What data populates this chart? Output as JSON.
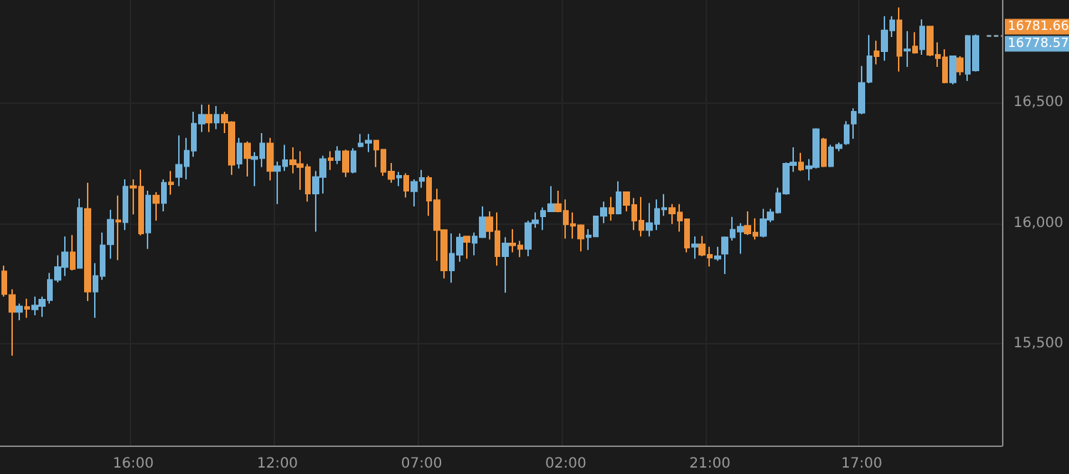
{
  "chart_data": {
    "type": "candlestick",
    "categories": [
      null,
      null,
      null,
      null,
      null,
      null,
      null,
      null,
      null,
      null,
      null,
      null,
      null,
      null,
      null,
      null,
      null,
      "16:00",
      null,
      null,
      null,
      null,
      null,
      null,
      null,
      null,
      null,
      null,
      null,
      null,
      null,
      null,
      null,
      null,
      null,
      null,
      "12:00",
      null,
      null,
      null,
      null,
      null,
      null,
      null,
      null,
      null,
      null,
      null,
      null,
      null,
      null,
      null,
      null,
      null,
      null,
      "07:00",
      null,
      null,
      null,
      null,
      null,
      null,
      null,
      null,
      null,
      null,
      null,
      null,
      null,
      null,
      null,
      null,
      null,
      null,
      "02:00",
      null,
      null,
      null,
      null,
      null,
      null,
      null,
      null,
      null,
      null,
      null,
      null,
      null,
      null,
      null,
      null,
      null,
      null,
      "21:00",
      null,
      null,
      null,
      null,
      null,
      null,
      null,
      null,
      null,
      null,
      null,
      null,
      null,
      null,
      null,
      null,
      null,
      null,
      null,
      "17:00",
      null,
      null,
      null,
      null,
      null,
      null,
      null,
      null,
      null,
      null,
      null,
      null,
      null,
      null,
      null
    ],
    "ohlc": [
      [
        15801,
        15825,
        15697,
        15707
      ],
      [
        15703,
        15727,
        15452,
        15633
      ],
      [
        15633,
        15668,
        15599,
        15656
      ],
      [
        15654,
        15688,
        15609,
        15646
      ],
      [
        15644,
        15697,
        15619,
        15660
      ],
      [
        15658,
        15697,
        15613,
        15684
      ],
      [
        15682,
        15795,
        15668,
        15766
      ],
      [
        15766,
        15868,
        15756,
        15819
      ],
      [
        15819,
        15946,
        15782,
        15880
      ],
      [
        15880,
        15952,
        15805,
        15811
      ],
      [
        15815,
        16103,
        15815,
        16064
      ],
      [
        16060,
        16168,
        15678,
        15717
      ],
      [
        15717,
        15835,
        15609,
        15782
      ],
      [
        15782,
        15962,
        15766,
        15909
      ],
      [
        15913,
        16056,
        15854,
        16015
      ],
      [
        16013,
        16115,
        15848,
        16007
      ],
      [
        16005,
        16182,
        15972,
        16152
      ],
      [
        16154,
        16182,
        16037,
        16148
      ],
      [
        16152,
        16223,
        15950,
        15958
      ],
      [
        15962,
        16135,
        15894,
        16115
      ],
      [
        16115,
        16129,
        16011,
        16084
      ],
      [
        16084,
        16182,
        16050,
        16168
      ],
      [
        16170,
        16217,
        16119,
        16162
      ],
      [
        16192,
        16364,
        16154,
        16243
      ],
      [
        16237,
        16354,
        16182,
        16301
      ],
      [
        16301,
        16462,
        16276,
        16413
      ],
      [
        16413,
        16492,
        16378,
        16450
      ],
      [
        16450,
        16492,
        16378,
        16417
      ],
      [
        16417,
        16486,
        16390,
        16450
      ],
      [
        16450,
        16462,
        16374,
        16417
      ],
      [
        16419,
        16423,
        16201,
        16243
      ],
      [
        16247,
        16354,
        16227,
        16331
      ],
      [
        16331,
        16339,
        16194,
        16270
      ],
      [
        16266,
        16295,
        16154,
        16276
      ],
      [
        16270,
        16374,
        16233,
        16331
      ],
      [
        16331,
        16354,
        16178,
        16217
      ],
      [
        16217,
        16256,
        16080,
        16237
      ],
      [
        16237,
        16325,
        16217,
        16262
      ],
      [
        16262,
        16315,
        16207,
        16244
      ],
      [
        16246,
        16299,
        16139,
        16233
      ],
      [
        16233,
        16246,
        16090,
        16123
      ],
      [
        16123,
        16217,
        15966,
        16192
      ],
      [
        16192,
        16280,
        16123,
        16266
      ],
      [
        16270,
        16299,
        16221,
        16262
      ],
      [
        16262,
        16319,
        16246,
        16299
      ],
      [
        16299,
        16305,
        16192,
        16213
      ],
      [
        16213,
        16311,
        16207,
        16299
      ],
      [
        16319,
        16370,
        16315,
        16331
      ],
      [
        16333,
        16370,
        16295,
        16343
      ],
      [
        16343,
        16345,
        16233,
        16305
      ],
      [
        16305,
        16307,
        16197,
        16213
      ],
      [
        16215,
        16250,
        16168,
        16184
      ],
      [
        16190,
        16213,
        16154,
        16197
      ],
      [
        16197,
        16207,
        16107,
        16135
      ],
      [
        16133,
        16182,
        16070,
        16172
      ],
      [
        16176,
        16221,
        16148,
        16188
      ],
      [
        16188,
        16197,
        16031,
        16094
      ],
      [
        16096,
        16143,
        15845,
        15972
      ],
      [
        15972,
        15974,
        15772,
        15805
      ],
      [
        15805,
        15958,
        15754,
        15874
      ],
      [
        15870,
        15958,
        15841,
        15941
      ],
      [
        15946,
        15948,
        15854,
        15923
      ],
      [
        15919,
        15962,
        15868,
        15946
      ],
      [
        15943,
        16070,
        15939,
        16025
      ],
      [
        16025,
        16050,
        15933,
        15968
      ],
      [
        15968,
        16045,
        15825,
        15864
      ],
      [
        15864,
        15943,
        15713,
        15917
      ],
      [
        15917,
        15976,
        15880,
        15909
      ],
      [
        15909,
        15927,
        15860,
        15894
      ],
      [
        15894,
        16011,
        15864,
        16001
      ],
      [
        16000,
        16045,
        15982,
        16013
      ],
      [
        16029,
        16066,
        15972,
        16052
      ],
      [
        16050,
        16154,
        16048,
        16080
      ],
      [
        16080,
        16135,
        16046,
        16050
      ],
      [
        16052,
        16099,
        15937,
        15996
      ],
      [
        15997,
        16045,
        15937,
        15990
      ],
      [
        15992,
        15996,
        15884,
        15937
      ],
      [
        15943,
        15976,
        15890,
        15950
      ],
      [
        15946,
        16031,
        15944,
        16029
      ],
      [
        16031,
        16090,
        16001,
        16064
      ],
      [
        16064,
        16109,
        16011,
        16041
      ],
      [
        16041,
        16174,
        16037,
        16129
      ],
      [
        16129,
        16131,
        16050,
        16076
      ],
      [
        16076,
        16105,
        15972,
        16011
      ],
      [
        16011,
        16109,
        15946,
        15972
      ],
      [
        15972,
        16084,
        15946,
        16001
      ],
      [
        15997,
        16099,
        15972,
        16060
      ],
      [
        16058,
        16121,
        16031,
        16064
      ],
      [
        16064,
        16080,
        15997,
        16041
      ],
      [
        16045,
        16080,
        15966,
        16011
      ],
      [
        16017,
        16019,
        15880,
        15899
      ],
      [
        15903,
        15946,
        15854,
        15913
      ],
      [
        15913,
        15948,
        15864,
        15870
      ],
      [
        15870,
        15903,
        15821,
        15858
      ],
      [
        15854,
        15903,
        15845,
        15864
      ],
      [
        15874,
        15946,
        15790,
        15942
      ],
      [
        15942,
        16027,
        15929,
        15974
      ],
      [
        15966,
        16001,
        15874,
        15986
      ],
      [
        15990,
        16050,
        15952,
        15958
      ],
      [
        15962,
        16021,
        15933,
        15948
      ],
      [
        15948,
        16060,
        15942,
        16017
      ],
      [
        16015,
        16060,
        16005,
        16046
      ],
      [
        16045,
        16148,
        16041,
        16125
      ],
      [
        16123,
        16252,
        16119,
        16247
      ],
      [
        16241,
        16315,
        16213,
        16252
      ],
      [
        16252,
        16292,
        16217,
        16223
      ],
      [
        16227,
        16266,
        16178,
        16237
      ],
      [
        16233,
        16394,
        16227,
        16390
      ],
      [
        16348,
        16354,
        16233,
        16237
      ],
      [
        16237,
        16325,
        16233,
        16315
      ],
      [
        16311,
        16335,
        16299,
        16325
      ],
      [
        16331,
        16423,
        16325,
        16407
      ],
      [
        16413,
        16476,
        16350,
        16462
      ],
      [
        16458,
        16652,
        16452,
        16582
      ],
      [
        16586,
        16780,
        16580,
        16692
      ],
      [
        16713,
        16756,
        16658,
        16692
      ],
      [
        16713,
        16858,
        16674,
        16799
      ],
      [
        16799,
        16858,
        16772,
        16841
      ],
      [
        16841,
        16894,
        16629,
        16694
      ],
      [
        16715,
        16796,
        16648,
        16721
      ],
      [
        16733,
        16792,
        16703,
        16707
      ],
      [
        16721,
        16845,
        16698,
        16815
      ],
      [
        16815,
        16817,
        16692,
        16698
      ],
      [
        16698,
        16750,
        16648,
        16684
      ],
      [
        16688,
        16721,
        16580,
        16584
      ],
      [
        16584,
        16694,
        16576,
        16692
      ],
      [
        16684,
        16692,
        16613,
        16629
      ],
      [
        16619,
        16780,
        16590,
        16776
      ],
      [
        16633,
        16782,
        16629,
        16776
      ]
    ],
    "colors": [
      "#f0923a",
      "#f0923a",
      "#72b3dc",
      "#f0923a",
      "#72b3dc",
      "#72b3dc",
      "#72b3dc",
      "#72b3dc",
      "#72b3dc",
      "#f0923a",
      "#72b3dc",
      "#f0923a",
      "#72b3dc",
      "#72b3dc",
      "#72b3dc",
      "#f0923a",
      "#72b3dc",
      "#f0923a",
      "#f0923a",
      "#72b3dc",
      "#f0923a",
      "#72b3dc",
      "#f0923a",
      "#72b3dc",
      "#72b3dc",
      "#72b3dc",
      "#72b3dc",
      "#f0923a",
      "#72b3dc",
      "#f0923a",
      "#f0923a",
      "#72b3dc",
      "#f0923a",
      "#72b3dc",
      "#72b3dc",
      "#f0923a",
      "#72b3dc",
      "#72b3dc",
      "#f0923a",
      "#f0923a",
      "#f0923a",
      "#72b3dc",
      "#72b3dc",
      "#f0923a",
      "#72b3dc",
      "#f0923a",
      "#72b3dc",
      "#72b3dc",
      "#72b3dc",
      "#f0923a",
      "#f0923a",
      "#f0923a",
      "#72b3dc",
      "#f0923a",
      "#72b3dc",
      "#72b3dc",
      "#f0923a",
      "#f0923a",
      "#f0923a",
      "#72b3dc",
      "#72b3dc",
      "#f0923a",
      "#72b3dc",
      "#72b3dc",
      "#f0923a",
      "#f0923a",
      "#72b3dc",
      "#f0923a",
      "#f0923a",
      "#72b3dc",
      "#72b3dc",
      "#72b3dc",
      "#72b3dc",
      "#f0923a",
      "#f0923a",
      "#f0923a",
      "#f0923a",
      "#72b3dc",
      "#72b3dc",
      "#72b3dc",
      "#f0923a",
      "#72b3dc",
      "#f0923a",
      "#f0923a",
      "#f0923a",
      "#72b3dc",
      "#72b3dc",
      "#72b3dc",
      "#f0923a",
      "#f0923a",
      "#f0923a",
      "#72b3dc",
      "#f0923a",
      "#f0923a",
      "#72b3dc",
      "#72b3dc",
      "#72b3dc",
      "#72b3dc",
      "#f0923a",
      "#f0923a",
      "#72b3dc",
      "#72b3dc",
      "#72b3dc",
      "#72b3dc",
      "#72b3dc",
      "#f0923a",
      "#72b3dc",
      "#72b3dc",
      "#f0923a",
      "#72b3dc",
      "#72b3dc",
      "#72b3dc",
      "#72b3dc",
      "#72b3dc",
      "#72b3dc",
      "#f0923a",
      "#72b3dc",
      "#72b3dc",
      "#f0923a",
      "#72b3dc",
      "#f0923a",
      "#72b3dc",
      "#f0923a",
      "#f0923a",
      "#f0923a",
      "#72b3dc",
      "#f0923a",
      "#72b3dc",
      "#72b3dc"
    ],
    "ylim": [
      15080,
      16925
    ],
    "yticks": [
      {
        "value": 15500,
        "label": "15,500"
      },
      {
        "value": 16000,
        "label": "16,000"
      },
      {
        "value": 16500,
        "label": "16,500"
      }
    ],
    "grid": true,
    "annotations": [
      "16781.66",
      "16778.57"
    ]
  }
}
